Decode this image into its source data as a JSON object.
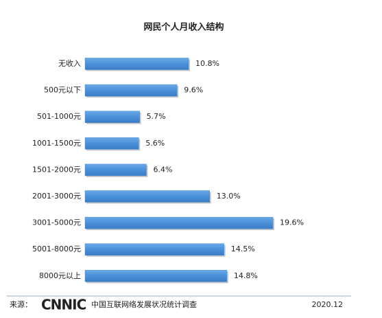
{
  "chart_data": {
    "type": "bar",
    "orientation": "horizontal",
    "title": "网民个人月收入结构",
    "categories": [
      "无收入",
      "500元以下",
      "501-1000元",
      "1001-1500元",
      "1501-2000元",
      "2001-3000元",
      "3001-5000元",
      "5001-8000元",
      "8000元以上"
    ],
    "values": [
      10.8,
      9.6,
      5.7,
      5.6,
      6.4,
      13.0,
      19.6,
      14.5,
      14.8
    ],
    "value_labels": [
      "10.8%",
      "9.6%",
      "5.7%",
      "5.6%",
      "6.4%",
      "13.0%",
      "19.6%",
      "14.5%",
      "14.8%"
    ],
    "color": "#4a90d9"
  },
  "footer": {
    "source_label": "来源：",
    "logo": "CNNIC",
    "source": "中国互联网络发展状况统计调查",
    "date": "2020.12"
  }
}
